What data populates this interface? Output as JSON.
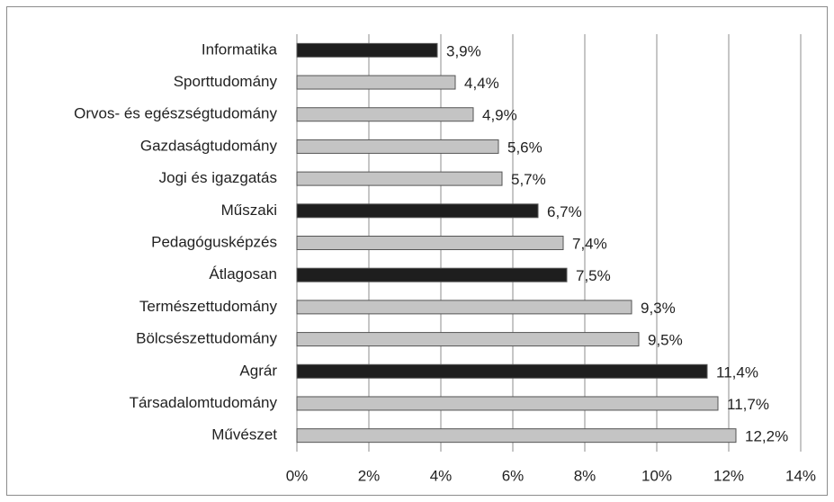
{
  "chart_data": {
    "type": "hbar",
    "categories": [
      "Informatika",
      "Sporttudomány",
      "Orvos- és egészségtudomány",
      "Gazdaságtudomány",
      "Jogi és igazgatás",
      "Műszaki",
      "Pedagógusképzés",
      "Átlagosan",
      "Természettudomány",
      "Bölcsészettudomány",
      "Agrár",
      "Társadalomtudomány",
      "Művészet"
    ],
    "values": [
      3.9,
      4.4,
      4.9,
      5.6,
      5.7,
      6.7,
      7.4,
      7.5,
      9.3,
      9.5,
      11.4,
      11.7,
      12.2
    ],
    "value_labels": [
      "3,9%",
      "4,4%",
      "4,9%",
      "5,6%",
      "5,7%",
      "6,7%",
      "7,4%",
      "7,5%",
      "9,3%",
      "9,5%",
      "11,4%",
      "11,7%",
      "12,2%"
    ],
    "colors": [
      "#1e1e1e",
      "#c4c4c4",
      "#c4c4c4",
      "#c4c4c4",
      "#c4c4c4",
      "#1e1e1e",
      "#c4c4c4",
      "#1e1e1e",
      "#c4c4c4",
      "#c4c4c4",
      "#1e1e1e",
      "#c4c4c4",
      "#c4c4c4"
    ],
    "xlim": [
      0,
      14
    ],
    "xticks": [
      {
        "value": 0,
        "label": "0%"
      },
      {
        "value": 2,
        "label": "2%"
      },
      {
        "value": 4,
        "label": "4%"
      },
      {
        "value": 6,
        "label": "6%"
      },
      {
        "value": 8,
        "label": "8%"
      },
      {
        "value": 10,
        "label": "10%"
      },
      {
        "value": 12,
        "label": "12%"
      },
      {
        "value": 14,
        "label": "14%"
      }
    ],
    "grid": true
  }
}
